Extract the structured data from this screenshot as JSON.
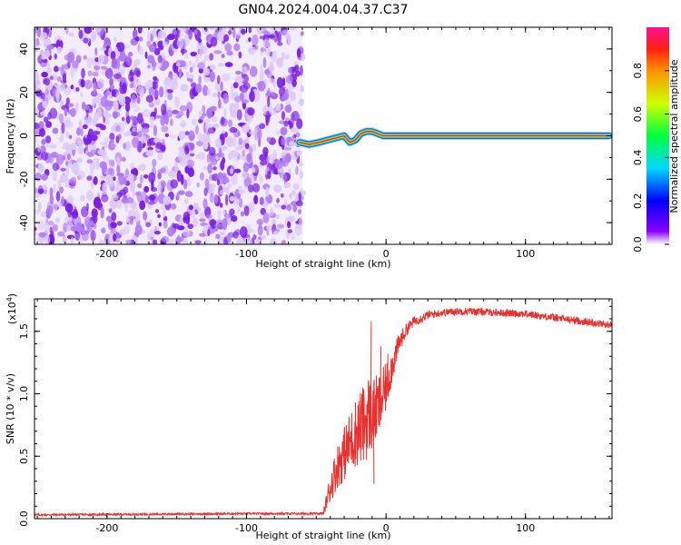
{
  "title": "GN04.2024.004.04.37.C37",
  "colors": {
    "snr_line": "#e8312f",
    "ridge_core": "#ff2020",
    "noise_strong": "#7a1fe0",
    "noise_mid": "#b27cf0",
    "noise_light": "#ddc9f7"
  },
  "chart_data": [
    {
      "type": "heatmap",
      "name": "spectrogram",
      "xlabel": "Height of straight line (km)",
      "ylabel": "Frequency (Hz)",
      "xlim": [
        -252,
        162
      ],
      "ylim": [
        -50,
        50
      ],
      "xticks": [
        {
          "v": -200,
          "label": "-200"
        },
        {
          "v": -100,
          "label": "-100"
        },
        {
          "v": 0,
          "label": "0"
        },
        {
          "v": 100,
          "label": "100"
        }
      ],
      "yticks": [
        {
          "v": -40,
          "label": "-40"
        },
        {
          "v": -20,
          "label": "-20"
        },
        {
          "v": 0,
          "label": "0"
        },
        {
          "v": 20,
          "label": "20"
        },
        {
          "v": 40,
          "label": "40"
        }
      ],
      "noise_region_x": [
        -252,
        -60
      ],
      "signal_track": {
        "x": [
          -62,
          -55,
          -48,
          -42,
          -36,
          -30,
          -26,
          -22,
          -18,
          -14,
          -10,
          -6,
          -2,
          5,
          160
        ],
        "freq": [
          -3,
          -4,
          -3,
          -2,
          -1,
          0,
          -3,
          -2,
          1,
          2,
          2,
          1,
          0,
          0,
          0
        ]
      },
      "colorbar": {
        "label": "Normalized spectral amplitude",
        "range": [
          0,
          1
        ],
        "ticks": [
          {
            "v": 0,
            "label": "0.0"
          },
          {
            "v": 0.2,
            "label": "0.2"
          },
          {
            "v": 0.4,
            "label": "0.4"
          },
          {
            "v": 0.6,
            "label": "0.6"
          },
          {
            "v": 0.8,
            "label": "0.8"
          }
        ]
      }
    },
    {
      "type": "line",
      "name": "snr",
      "xlabel": "Height of straight line (km)",
      "ylabel": "SNR (10 * v/v)",
      "y_multiplier": "(x10",
      "y_exponent": "4",
      "y_multiplier_close": ")",
      "xlim": [
        -252,
        162
      ],
      "ylim": [
        0,
        17600
      ],
      "xticks": [
        {
          "v": -200,
          "label": "-200"
        },
        {
          "v": -100,
          "label": "-100"
        },
        {
          "v": 0,
          "label": "0"
        },
        {
          "v": 100,
          "label": "100"
        }
      ],
      "yticks": [
        {
          "v": 0,
          "label": "0.0"
        },
        {
          "v": 5000,
          "label": "0.5"
        },
        {
          "v": 10000,
          "label": "1.0"
        },
        {
          "v": 15000,
          "label": "1.5"
        }
      ],
      "envelope": {
        "x": [
          -252,
          -100,
          -45,
          -40,
          -35,
          -30,
          -25,
          -20,
          -15,
          -12,
          -10,
          -5,
          0,
          5,
          10,
          15,
          20,
          30,
          40,
          50,
          60,
          80,
          100,
          120,
          140,
          162
        ],
        "mean": [
          300,
          400,
          400,
          2500,
          4200,
          5200,
          6300,
          7200,
          7600,
          8500,
          8300,
          9000,
          10500,
          12500,
          14200,
          15200,
          15800,
          16300,
          16500,
          16600,
          16600,
          16500,
          16400,
          16100,
          15800,
          15500
        ],
        "spread": [
          80,
          80,
          100,
          1300,
          1800,
          2200,
          2500,
          3000,
          3200,
          3400,
          3000,
          2600,
          2000,
          1300,
          800,
          500,
          400,
          350,
          300,
          300,
          300,
          300,
          300,
          300,
          300,
          300
        ]
      },
      "spikes": [
        {
          "x": -11,
          "y": 15800
        },
        {
          "x": -9,
          "y": 2800
        },
        {
          "x": -4,
          "y": 13800
        },
        {
          "x": 1,
          "y": 13200
        }
      ]
    }
  ]
}
